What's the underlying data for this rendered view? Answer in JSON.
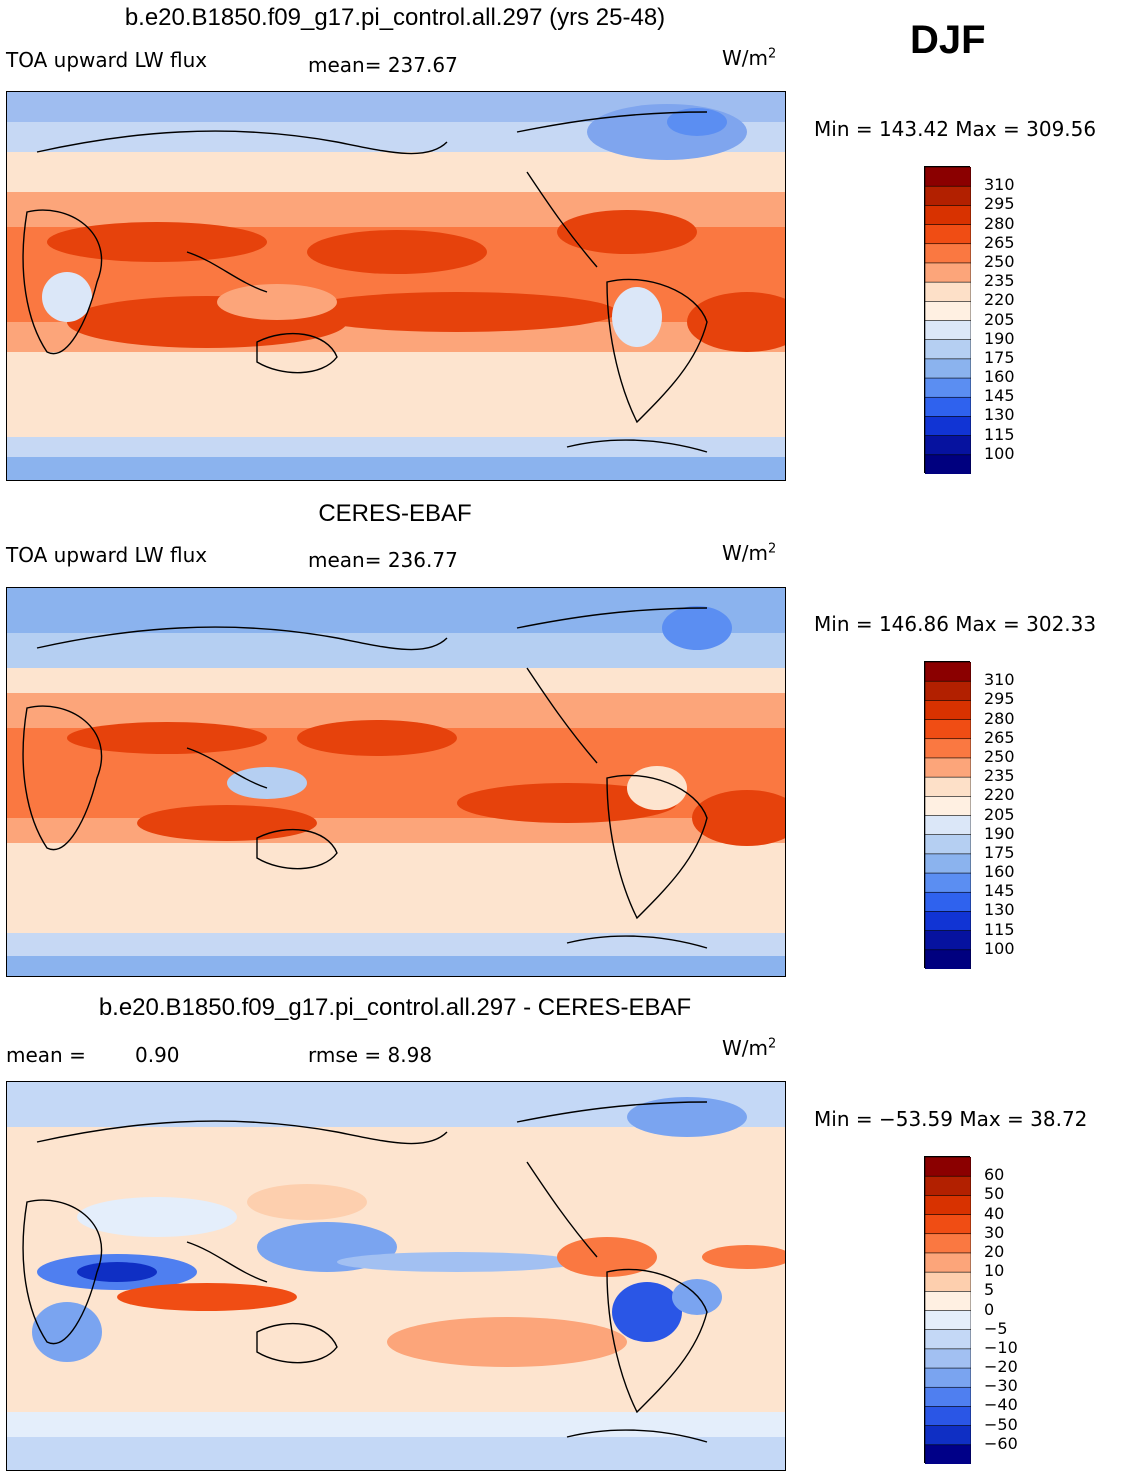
{
  "season": "DJF",
  "panels": [
    {
      "title": "b.e20.B1850.f09_g17.pi_control.all.297 (yrs 25-48)",
      "variable": "TOA upward LW flux",
      "stat1": "mean=  237.67",
      "stat2": "",
      "units": "W/m",
      "units_exp": "2",
      "minmax": "Min = 143.42 Max = 309.56"
    },
    {
      "title": "CERES-EBAF",
      "variable": "TOA upward LW flux",
      "stat1": "mean=  236.77",
      "stat2": "",
      "units": "W/m",
      "units_exp": "2",
      "minmax": "Min = 146.86 Max = 302.33"
    },
    {
      "title": "b.e20.B1850.f09_g17.pi_control.all.297 - CERES-EBAF",
      "variable": "mean =",
      "stat1": "0.90",
      "stat2": "rmse =    8.98",
      "units": "W/m",
      "units_exp": "2",
      "minmax": "Min = −53.59 Max =  38.72"
    }
  ],
  "chart_data": [
    {
      "type": "heatmap",
      "title": "b.e20.B1850.f09_g17.pi_control.all.297 (yrs 25-48)",
      "field": "TOA upward LW flux",
      "units": "W/m^2",
      "mean": 237.67,
      "min": 143.42,
      "max": 309.56,
      "colorbar_levels": [
        "310",
        "295",
        "280",
        "265",
        "250",
        "235",
        "220",
        "205",
        "190",
        "175",
        "160",
        "145",
        "130",
        "115",
        "100"
      ],
      "colors": [
        "#8b0000",
        "#b22000",
        "#d83200",
        "#f04d14",
        "#fa7841",
        "#fca57a",
        "#fde0c8",
        "#fff0e2",
        "#dbe7f8",
        "#b5cff2",
        "#8bb3ee",
        "#5b8ef2",
        "#2f62ee",
        "#1134d4",
        "#06129f",
        "#00007f"
      ]
    },
    {
      "type": "heatmap",
      "title": "CERES-EBAF",
      "field": "TOA upward LW flux",
      "units": "W/m^2",
      "mean": 236.77,
      "min": 146.86,
      "max": 302.33,
      "colorbar_levels": [
        "310",
        "295",
        "280",
        "265",
        "250",
        "235",
        "220",
        "205",
        "190",
        "175",
        "160",
        "145",
        "130",
        "115",
        "100"
      ],
      "colors": [
        "#8b0000",
        "#b22000",
        "#d83200",
        "#f04d14",
        "#fa7841",
        "#fca57a",
        "#fde0c8",
        "#fff0e2",
        "#dbe7f8",
        "#b5cff2",
        "#8bb3ee",
        "#5b8ef2",
        "#2f62ee",
        "#1134d4",
        "#06129f",
        "#00007f"
      ]
    },
    {
      "type": "heatmap",
      "title": "b.e20.B1850.f09_g17.pi_control.all.297 - CERES-EBAF",
      "field": "difference",
      "units": "W/m^2",
      "mean": 0.9,
      "rmse": 8.98,
      "min": -53.59,
      "max": 38.72,
      "colorbar_levels": [
        "60",
        "50",
        "40",
        "30",
        "20",
        "10",
        "5",
        "0",
        "−5",
        "−10",
        "−20",
        "−30",
        "−40",
        "−50",
        "−60"
      ],
      "colors": [
        "#8b0000",
        "#b22000",
        "#d83200",
        "#f04d14",
        "#fa7841",
        "#fca57a",
        "#fdcfae",
        "#fff0e2",
        "#e4eefb",
        "#c4d8f6",
        "#a2c0f2",
        "#7aa4f0",
        "#4f7ff0",
        "#2a56e6",
        "#0f2fc4",
        "#000088"
      ]
    }
  ]
}
